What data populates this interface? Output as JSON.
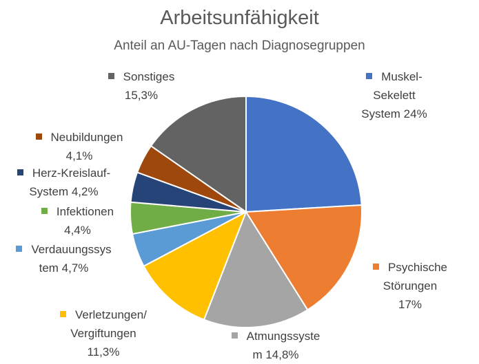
{
  "chart_data": {
    "type": "pie",
    "title": "Arbeitsunfähigkeit",
    "subtitle": "Anteil an AU-Tagen nach Diagnosegruppen",
    "unit": "%",
    "slices": [
      {
        "label_lines": [
          "Muskel-",
          "Sekelett",
          "System 24%"
        ],
        "value": 24.0,
        "color": "#4472C4"
      },
      {
        "label_lines": [
          "Psychische",
          "Störungen",
          "17%"
        ],
        "value": 17.0,
        "color": "#ED7D31"
      },
      {
        "label_lines": [
          "Atmungssyste",
          "m 14,8%"
        ],
        "value": 14.8,
        "color": "#A5A5A5"
      },
      {
        "label_lines": [
          "Verletzungen/",
          "Vergiftungen",
          "11,3%"
        ],
        "value": 11.3,
        "color": "#FFC000"
      },
      {
        "label_lines": [
          "Verdauungssys",
          "tem 4,7%"
        ],
        "value": 4.7,
        "color": "#5B9BD5"
      },
      {
        "label_lines": [
          "Infektionen",
          "4,4%"
        ],
        "value": 4.4,
        "color": "#70AD47"
      },
      {
        "label_lines": [
          "Herz-Kreislauf-",
          "System 4,2%"
        ],
        "value": 4.2,
        "color": "#264478"
      },
      {
        "label_lines": [
          "Neubildungen",
          "4,1%"
        ],
        "value": 4.1,
        "color": "#9E480E"
      },
      {
        "label_lines": [
          "Sonstiges",
          "15,3%"
        ],
        "value": 15.3,
        "color": "#636363"
      }
    ]
  }
}
